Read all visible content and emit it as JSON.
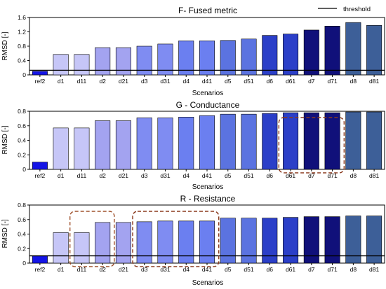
{
  "legend": {
    "label": "threshold"
  },
  "chart_data": [
    {
      "type": "bar",
      "title": "F- Fused metric",
      "xlabel": "Scenarios",
      "ylabel": "RMSD [-]",
      "ylim": [
        0,
        1.6
      ],
      "yticks": [
        "0",
        "0.4",
        "0.8",
        "1.2",
        "1.6"
      ],
      "threshold": 0.13,
      "categories": [
        "ref2",
        "d1",
        "d11",
        "d2",
        "d21",
        "d3",
        "d31",
        "d4",
        "d41",
        "d5",
        "d51",
        "d6",
        "d61",
        "d7",
        "d71",
        "d8",
        "d81"
      ],
      "values": [
        0.1,
        0.57,
        0.57,
        0.76,
        0.76,
        0.8,
        0.86,
        0.95,
        0.95,
        0.96,
        1.0,
        1.1,
        1.14,
        1.25,
        1.36,
        1.46,
        1.38
      ],
      "highlights": []
    },
    {
      "type": "bar",
      "title": "G - Conductance",
      "xlabel": "Scenarios",
      "ylabel": "RMSD [-]",
      "ylim": [
        0,
        0.8
      ],
      "yticks": [
        "0",
        "0.2",
        "0.4",
        "0.6",
        "0.8"
      ],
      "threshold": null,
      "categories": [
        "ref2",
        "d1",
        "d11",
        "d2",
        "d21",
        "d3",
        "d31",
        "d4",
        "d41",
        "d5",
        "d51",
        "d6",
        "d61",
        "d7",
        "d71",
        "d8",
        "d81"
      ],
      "values": [
        0.1,
        0.57,
        0.57,
        0.67,
        0.67,
        0.71,
        0.71,
        0.72,
        0.74,
        0.76,
        0.76,
        0.77,
        0.78,
        0.78,
        0.78,
        0.79,
        0.79
      ],
      "highlights": [
        {
          "from": 12,
          "to": 14,
          "color": "#8b3a1e"
        }
      ]
    },
    {
      "type": "bar",
      "title": "R - Resistance",
      "xlabel": "Scenarios",
      "ylabel": "RMSD [-]",
      "ylim": [
        0,
        0.8
      ],
      "yticks": [
        "0",
        "0.2",
        "0.4",
        "0.6",
        "0.8"
      ],
      "threshold": 0.1,
      "categories": [
        "ref2",
        "d1",
        "d11",
        "d2",
        "d21",
        "d3",
        "d31",
        "d4",
        "d41",
        "d5",
        "d51",
        "d6",
        "d61",
        "d7",
        "d71",
        "d8",
        "d81"
      ],
      "values": [
        0.1,
        0.42,
        0.42,
        0.56,
        0.56,
        0.57,
        0.58,
        0.58,
        0.58,
        0.62,
        0.62,
        0.62,
        0.63,
        0.64,
        0.64,
        0.65,
        0.65
      ],
      "highlights": [
        {
          "from": 2,
          "to": 3,
          "color": "#a0522d"
        },
        {
          "from": 5,
          "to": 8,
          "color": "#8b3a1e"
        }
      ]
    }
  ],
  "colors": {
    "bars": [
      "#1414e6",
      "#c6c6f7",
      "#c6c6f7",
      "#a3a3f0",
      "#a3a3f0",
      "#7f8cf2",
      "#7f8cf2",
      "#6b7ff0",
      "#6b7ff0",
      "#5b73e0",
      "#5b73e0",
      "#2b3fc8",
      "#2b3fc8",
      "#10107a",
      "#10107a",
      "#3d5f98",
      "#3d5f98"
    ],
    "threshold": "#000000"
  }
}
